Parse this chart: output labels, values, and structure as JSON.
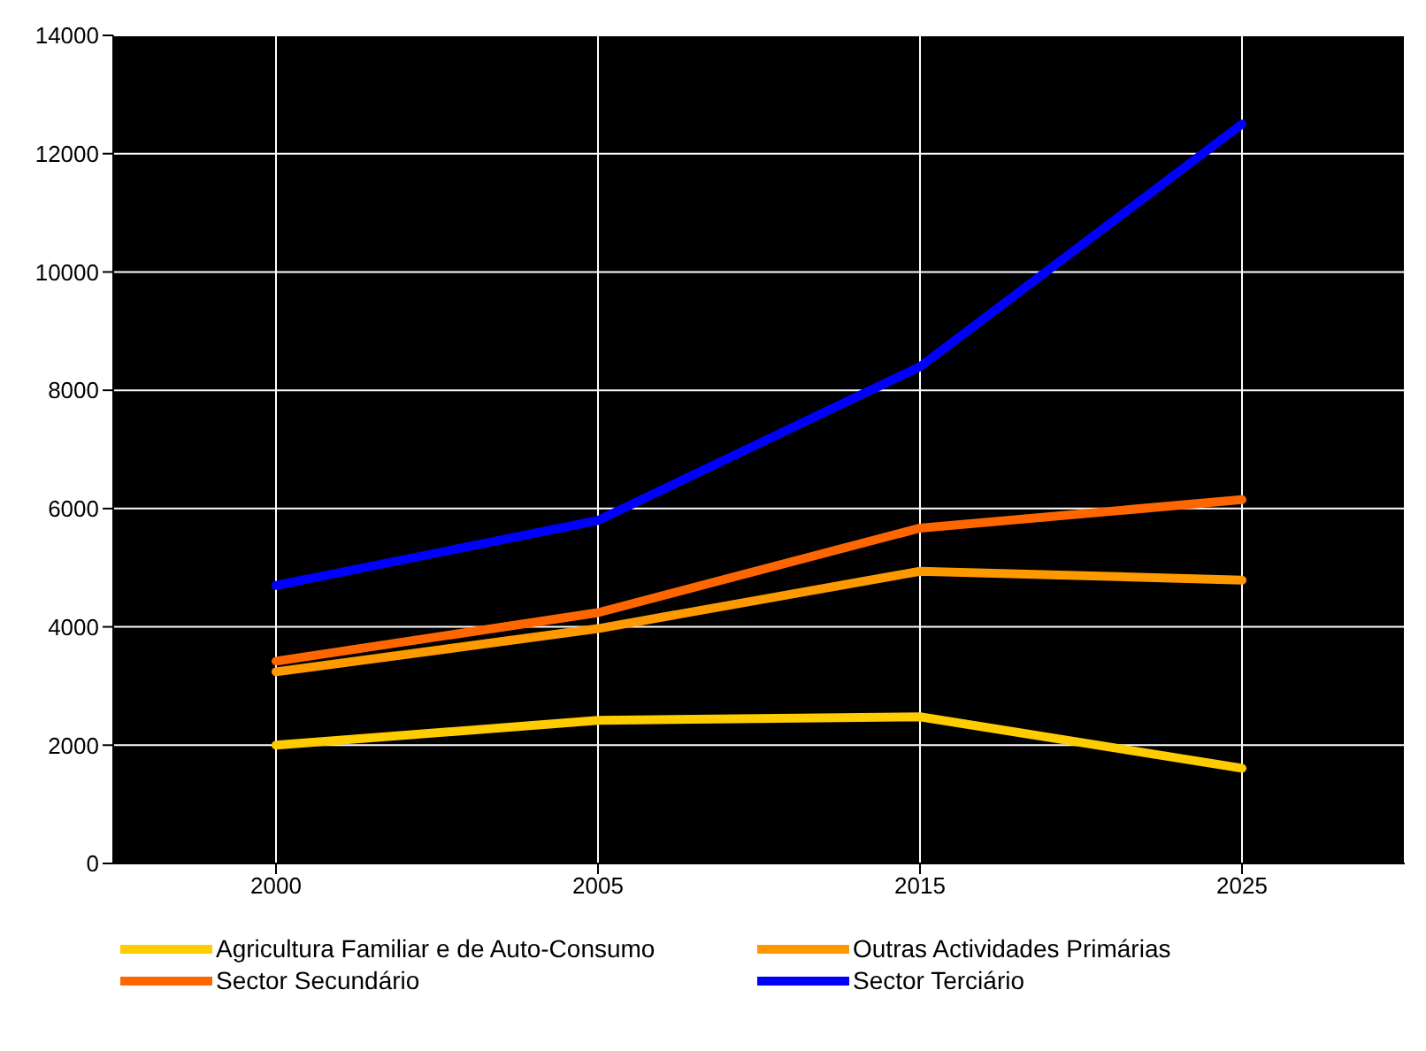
{
  "chart_data": {
    "type": "line",
    "categories": [
      "2000",
      "2005",
      "2015",
      "2025"
    ],
    "series": [
      {
        "name": "Agricultura Familiar e de Auto-Consumo",
        "color": "#ffcc00",
        "values": [
          2000,
          2420,
          2480,
          1610
        ]
      },
      {
        "name": "Outras Actividades Primárias",
        "color": "#ff9900",
        "values": [
          3240,
          3970,
          4940,
          4790
        ]
      },
      {
        "name": "Sector Secundário",
        "color": "#ff6600",
        "values": [
          3420,
          4240,
          5670,
          6150
        ]
      },
      {
        "name": "Sector Terciário",
        "color": "#0000ff",
        "values": [
          4700,
          5800,
          8400,
          12500
        ]
      }
    ],
    "ylim": [
      0,
      14000
    ],
    "yticks": [
      0,
      2000,
      4000,
      6000,
      8000,
      10000,
      12000,
      14000
    ],
    "grid": true,
    "legend": "bottom",
    "marker": "none",
    "line_style": "solid"
  }
}
